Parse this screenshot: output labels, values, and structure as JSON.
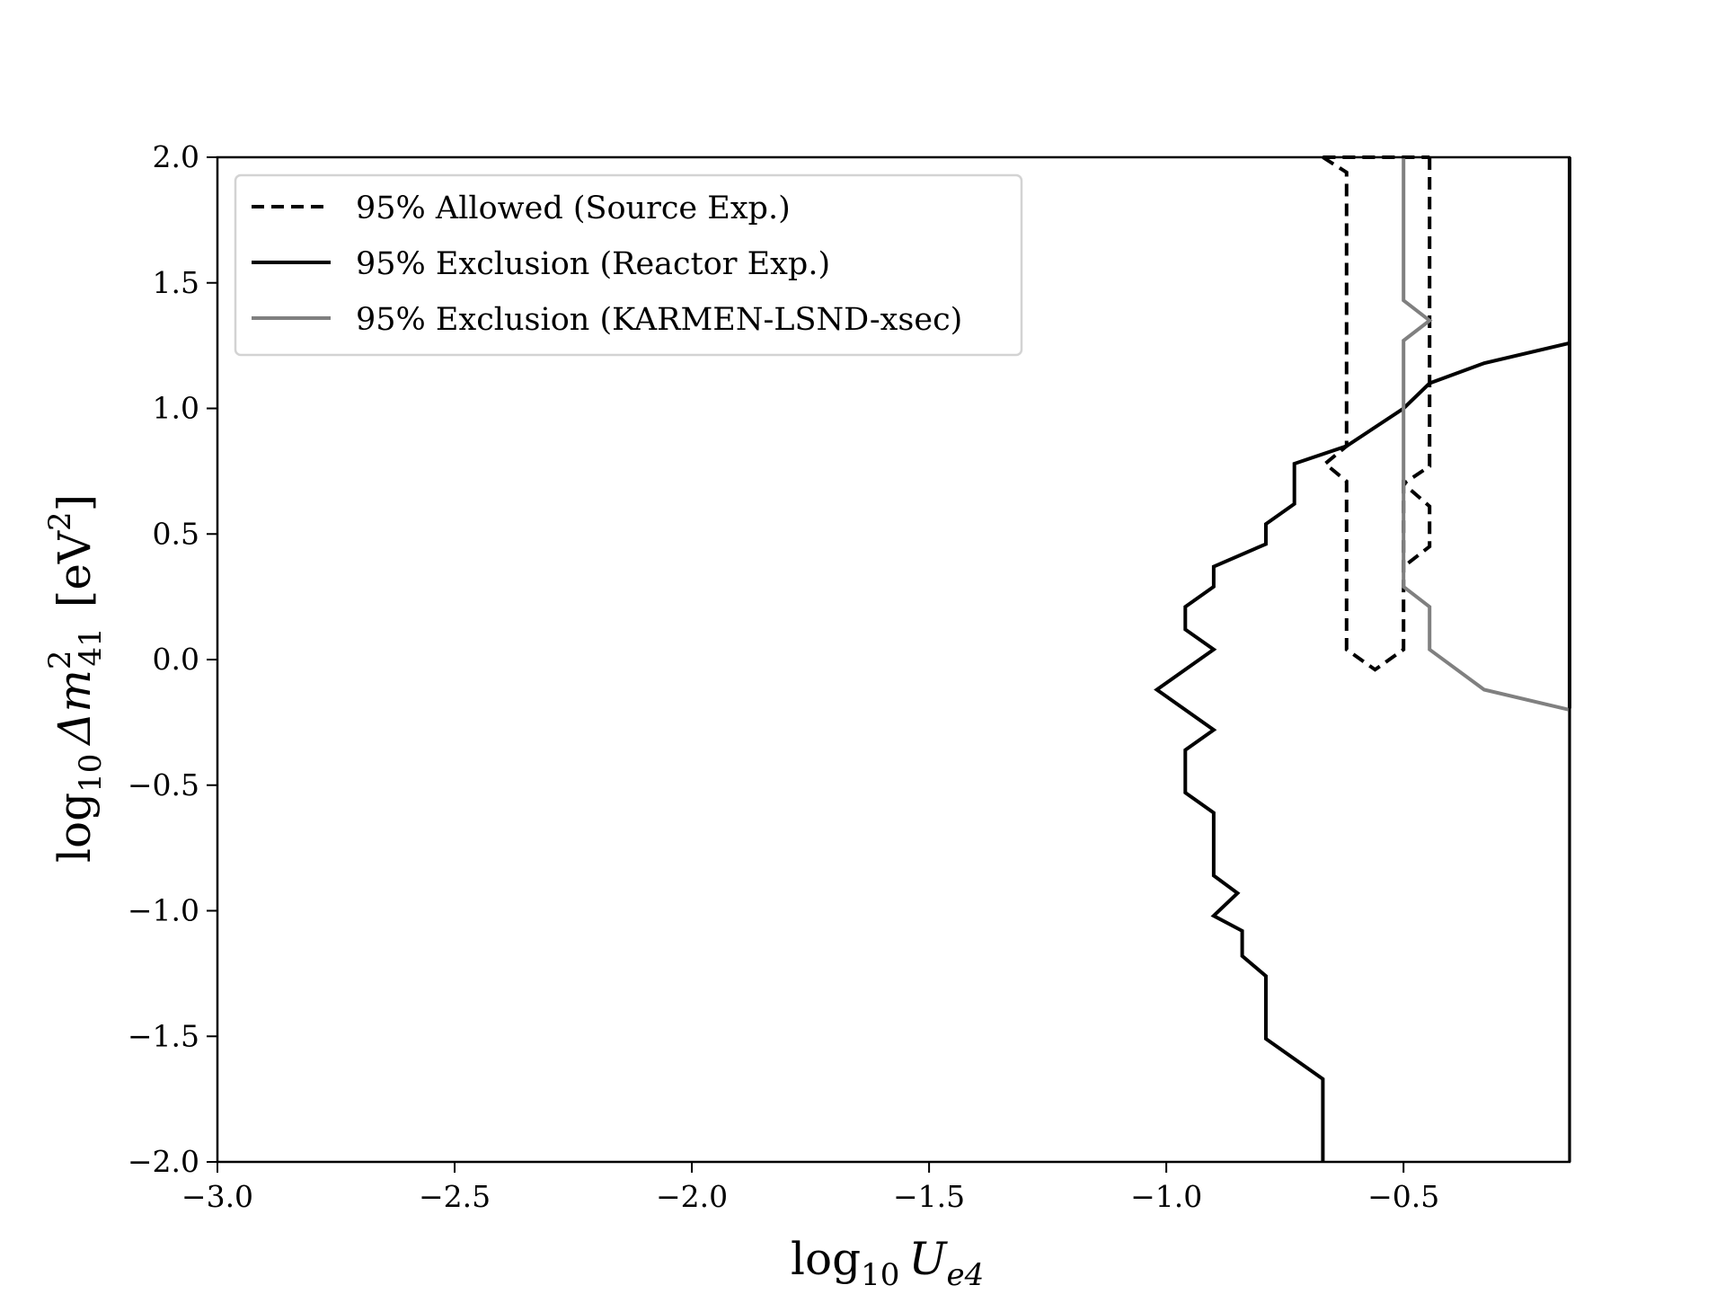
{
  "chart_data": {
    "type": "line",
    "title": "",
    "xlabel_parts": {
      "base": "log",
      "sub": "10",
      "var": "U",
      "varsub": "e4"
    },
    "ylabel_parts": {
      "base": "log",
      "sub": "10",
      "delta": "Δm",
      "sup": "2",
      "varsub": "41",
      "unit_open": "[eV",
      "unit_sup": "2",
      "unit_close": "]"
    },
    "xlim": [
      -3.0,
      -0.15
    ],
    "ylim": [
      -2.0,
      2.0
    ],
    "x_ticks": [
      -3.0,
      -2.5,
      -2.0,
      -1.5,
      -1.0,
      -0.5
    ],
    "x_tick_labels": [
      "−3.0",
      "−2.5",
      "−2.0",
      "−1.5",
      "−1.0",
      "−0.5"
    ],
    "y_ticks": [
      -2.0,
      -1.5,
      -1.0,
      -0.5,
      0.0,
      0.5,
      1.0,
      1.5,
      2.0
    ],
    "y_tick_labels": [
      "−2.0",
      "−1.5",
      "−1.0",
      "−0.5",
      "0.0",
      "0.5",
      "1.0",
      "1.5",
      "2.0"
    ],
    "grid": false,
    "legend_position": "top-left",
    "series": [
      {
        "name": "95% Allowed (Source Exp.)",
        "style": "dashed",
        "color": "#000000",
        "segments": [
          [
            [
              -0.67,
              2.0
            ],
            [
              -0.62,
              1.94
            ],
            [
              -0.62,
              0.85
            ],
            [
              -0.665,
              0.78
            ],
            [
              -0.62,
              0.71
            ],
            [
              -0.62,
              0.04
            ],
            [
              -0.56,
              -0.04
            ],
            [
              -0.5,
              0.04
            ],
            [
              -0.5,
              0.7
            ],
            [
              -0.445,
              0.61
            ],
            [
              -0.445,
              0.45
            ],
            [
              -0.5,
              0.37
            ]
          ],
          [
            [
              -0.445,
              2.0
            ],
            [
              -0.445,
              1.38
            ],
            [
              -0.445,
              0.77
            ],
            [
              -0.5,
              0.7
            ]
          ],
          [
            [
              -0.67,
              2.0
            ],
            [
              -0.445,
              2.0
            ]
          ]
        ]
      },
      {
        "name": "95% Exclusion (Reactor Exp.)",
        "style": "solid",
        "color": "#000000",
        "segments": [
          [
            [
              -0.67,
              -2.0
            ],
            [
              -0.67,
              -1.67
            ],
            [
              -0.79,
              -1.51
            ],
            [
              -0.79,
              -1.26
            ],
            [
              -0.84,
              -1.18
            ],
            [
              -0.84,
              -1.08
            ],
            [
              -0.9,
              -1.02
            ],
            [
              -0.85,
              -0.93
            ],
            [
              -0.9,
              -0.86
            ],
            [
              -0.9,
              -0.61
            ],
            [
              -0.96,
              -0.53
            ],
            [
              -0.96,
              -0.36
            ],
            [
              -0.9,
              -0.28
            ],
            [
              -1.02,
              -0.12
            ],
            [
              -0.9,
              0.04
            ],
            [
              -0.96,
              0.12
            ],
            [
              -0.96,
              0.21
            ],
            [
              -0.9,
              0.29
            ],
            [
              -0.9,
              0.37
            ],
            [
              -0.79,
              0.46
            ],
            [
              -0.79,
              0.54
            ],
            [
              -0.73,
              0.62
            ],
            [
              -0.73,
              0.78
            ],
            [
              -0.62,
              0.85
            ],
            [
              -0.5,
              1.0
            ],
            [
              -0.445,
              1.1
            ],
            [
              -0.33,
              1.18
            ],
            [
              -0.15,
              1.26
            ]
          ],
          [
            [
              -0.15,
              2.0
            ],
            [
              -0.15,
              -2.0
            ]
          ]
        ]
      },
      {
        "name": "95% Exclusion (KARMEN-LSND-xsec)",
        "style": "solid",
        "color": "#808080",
        "segments": [
          [
            [
              -0.5,
              2.0
            ],
            [
              -0.5,
              1.43
            ],
            [
              -0.445,
              1.35
            ],
            [
              -0.5,
              1.27
            ],
            [
              -0.5,
              0.29
            ],
            [
              -0.445,
              0.21
            ],
            [
              -0.445,
              0.04
            ],
            [
              -0.33,
              -0.12
            ],
            [
              -0.15,
              -0.2
            ],
            [
              -0.15,
              -2.0
            ]
          ]
        ]
      }
    ]
  }
}
